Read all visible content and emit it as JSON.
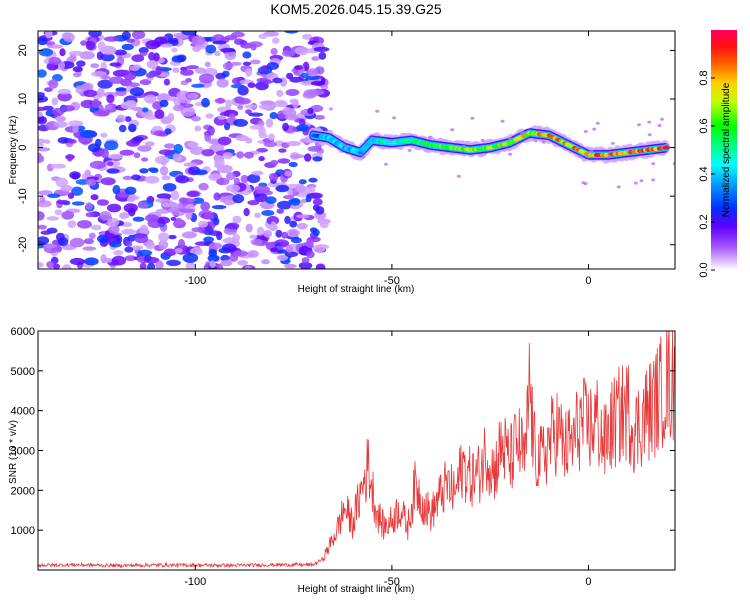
{
  "title": "KOM5.2026.045.15.39.G25",
  "chart_data": [
    {
      "type": "heatmap",
      "xlabel": "Height of straight line (km)",
      "ylabel": "Frequency (Hz)",
      "xlim": [
        -140,
        22
      ],
      "ylim": [
        -25,
        24
      ],
      "xticks": [
        -100,
        -50,
        0
      ],
      "yticks": [
        -20,
        -10,
        0,
        10,
        20
      ],
      "colorbar": {
        "label": "Normalized spectral amplitude",
        "range": [
          0.0,
          1.0
        ],
        "ticks": [
          "0.0",
          "0.2",
          "0.4",
          "0.6",
          "0.8"
        ],
        "tick_values": [
          0.0,
          0.2,
          0.4,
          0.6,
          0.8
        ]
      },
      "noise_region": {
        "x": [
          -140,
          -67
        ],
        "amplitude": [
          0.05,
          0.3
        ]
      },
      "ridge": [
        {
          "x": -70,
          "f": 2.5,
          "a": 0.3
        },
        {
          "x": -66,
          "f": 2.0,
          "a": 0.45
        },
        {
          "x": -62,
          "f": 0.0,
          "a": 0.42
        },
        {
          "x": -58,
          "f": -1.0,
          "a": 0.4
        },
        {
          "x": -55,
          "f": 1.5,
          "a": 0.48
        },
        {
          "x": -50,
          "f": 1.0,
          "a": 0.5
        },
        {
          "x": -45,
          "f": 1.5,
          "a": 0.55
        },
        {
          "x": -40,
          "f": 0.5,
          "a": 0.6
        },
        {
          "x": -35,
          "f": 0.0,
          "a": 0.68
        },
        {
          "x": -30,
          "f": -0.5,
          "a": 0.7
        },
        {
          "x": -25,
          "f": 0.0,
          "a": 0.72
        },
        {
          "x": -20,
          "f": 1.0,
          "a": 0.75
        },
        {
          "x": -15,
          "f": 3.0,
          "a": 0.8
        },
        {
          "x": -10,
          "f": 2.5,
          "a": 0.82
        },
        {
          "x": -5,
          "f": 0.5,
          "a": 0.85
        },
        {
          "x": 0,
          "f": -1.5,
          "a": 0.9
        },
        {
          "x": 5,
          "f": -1.5,
          "a": 0.92
        },
        {
          "x": 10,
          "f": -1.0,
          "a": 0.95
        },
        {
          "x": 15,
          "f": -0.5,
          "a": 0.95
        },
        {
          "x": 20,
          "f": 0.0,
          "a": 0.96
        }
      ]
    },
    {
      "type": "line",
      "xlabel": "Height of straight line (km)",
      "ylabel": "SNR (10 * v/v)",
      "xlim": [
        -140,
        22
      ],
      "ylim": [
        0,
        6000
      ],
      "xticks": [
        -100,
        -50,
        0
      ],
      "yticks": [
        1000,
        2000,
        3000,
        4000,
        5000,
        6000
      ],
      "color": "#e8393a",
      "series": [
        {
          "x": [
            -140,
            -130,
            -120,
            -110,
            -100,
            -90,
            -80,
            -70,
            -68,
            -66,
            -64,
            -62,
            -60,
            -58,
            -56,
            -54,
            -52,
            -50,
            -48,
            -46,
            -44,
            -42,
            -40,
            -38,
            -36,
            -34,
            -32,
            -30,
            -28,
            -26,
            -24,
            -22,
            -20,
            -18,
            -16,
            -15,
            -14,
            -12,
            -10,
            -8,
            -6,
            -4,
            -2,
            0,
            2,
            4,
            6,
            8,
            10,
            12,
            14,
            16,
            18,
            20,
            22
          ],
          "y": [
            120,
            130,
            110,
            125,
            120,
            115,
            130,
            130,
            250,
            700,
            1200,
            1900,
            1400,
            2300,
            3200,
            1800,
            1300,
            1500,
            1900,
            1300,
            2600,
            2000,
            1700,
            2200,
            2600,
            2300,
            3200,
            2800,
            2900,
            3600,
            3000,
            3800,
            3300,
            3900,
            3300,
            5850,
            3700,
            3300,
            3900,
            4300,
            3700,
            3900,
            4500,
            4300,
            4600,
            3800,
            4400,
            4700,
            4900,
            4200,
            4700,
            4900,
            5300,
            5800,
            5500
          ]
        }
      ]
    }
  ]
}
